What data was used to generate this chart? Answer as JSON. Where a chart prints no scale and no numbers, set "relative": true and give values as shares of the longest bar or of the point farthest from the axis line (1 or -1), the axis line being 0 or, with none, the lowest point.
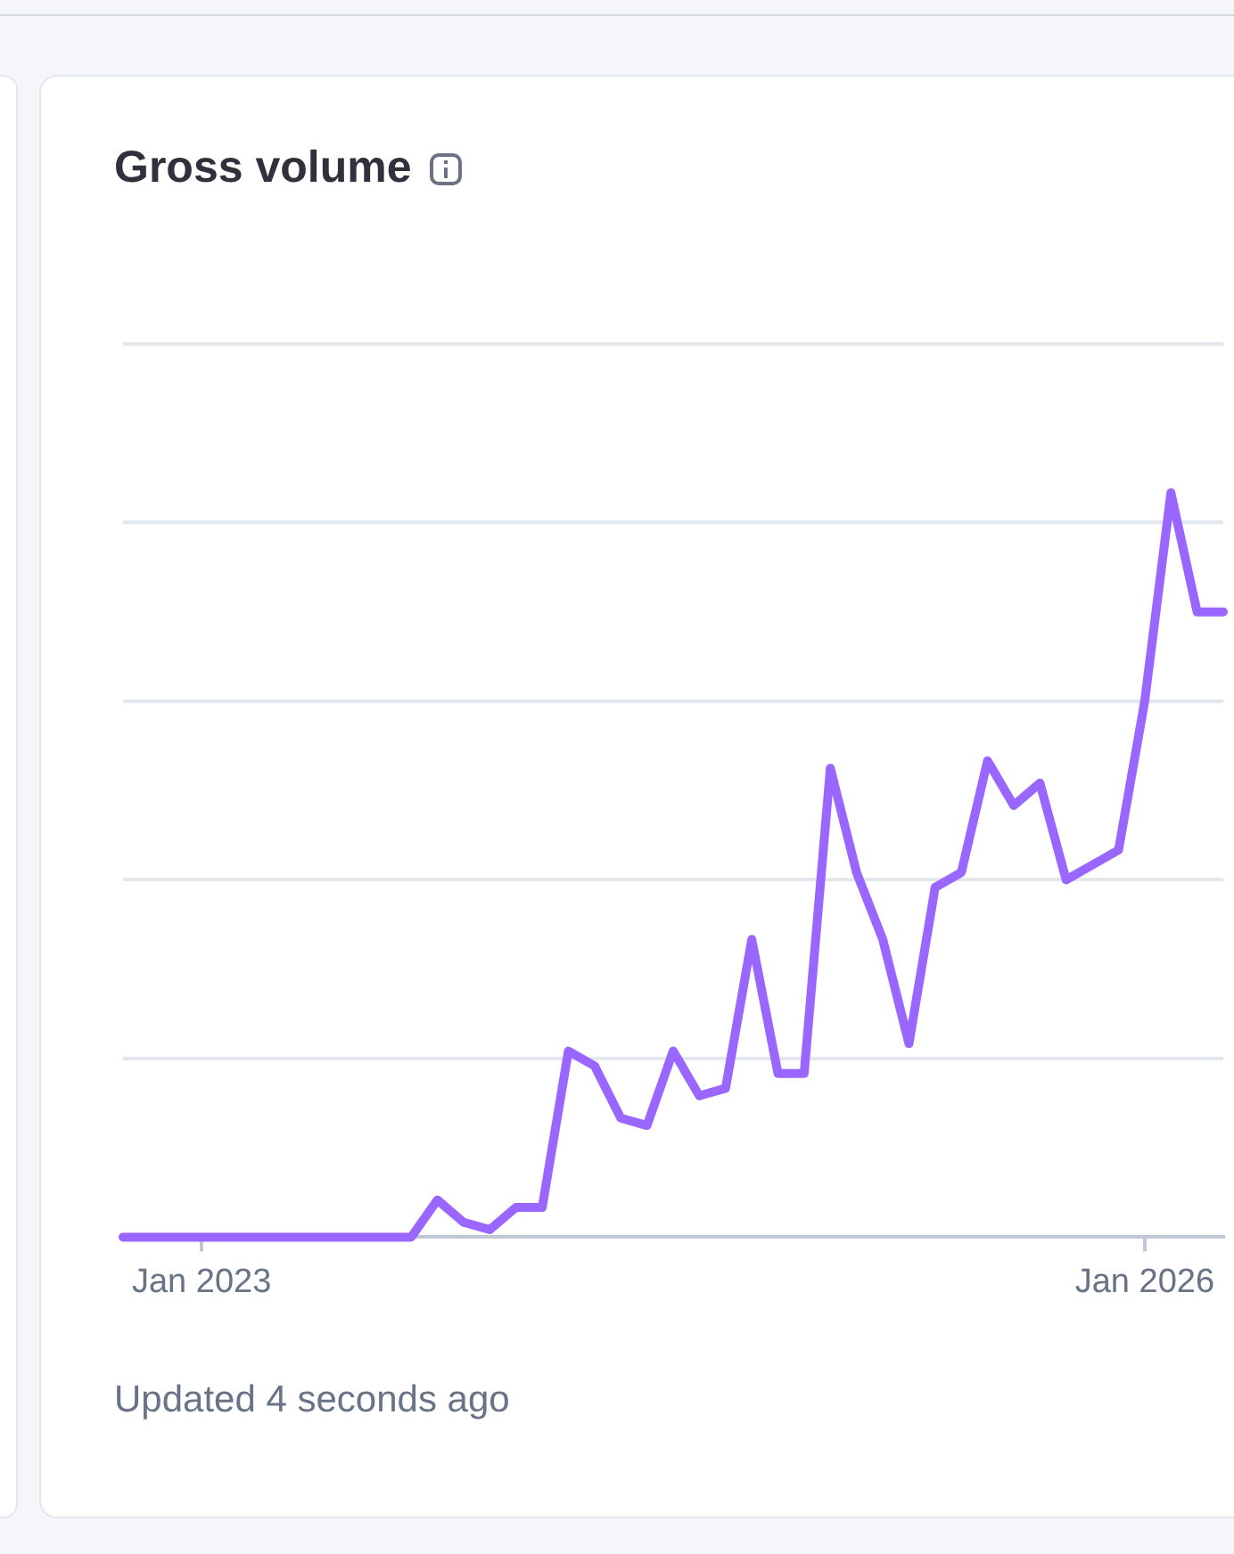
{
  "chart_data": {
    "type": "line",
    "title": "Gross volume",
    "relative": true,
    "grid": "y",
    "marker": "none",
    "legend": false,
    "categories": [
      null,
      null,
      null,
      "Jan 2023",
      null,
      null,
      null,
      null,
      null,
      null,
      null,
      null,
      null,
      null,
      null,
      null,
      null,
      null,
      null,
      null,
      null,
      null,
      null,
      null,
      null,
      null,
      null,
      null,
      null,
      null,
      null,
      null,
      null,
      null,
      null,
      null,
      null,
      null,
      null,
      "Jan 2026",
      null,
      null,
      null
    ],
    "series": [
      {
        "color": "#9966ff",
        "values": [
          0,
          0,
          0,
          0,
          0,
          0,
          0,
          0,
          0,
          0,
          0,
          0,
          0.05,
          0.02,
          0.01,
          0.04,
          0.04,
          0.25,
          0.23,
          0.16,
          0.15,
          0.25,
          0.19,
          0.2,
          0.4,
          0.22,
          0.22,
          0.63,
          0.49,
          0.4,
          0.26,
          0.47,
          0.49,
          0.64,
          0.58,
          0.61,
          0.48,
          0.5,
          0.52,
          0.72,
          1,
          0.84,
          0.84
        ]
      }
    ],
    "annotations": [
      "Updated 4 seconds ago"
    ]
  }
}
